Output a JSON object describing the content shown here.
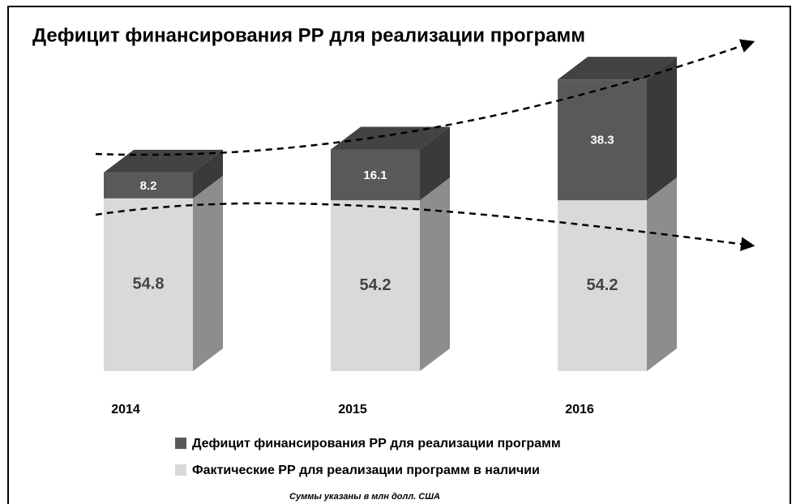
{
  "chart_data": {
    "type": "bar3d_stacked",
    "title": "Дефицит финансирования РР для реализации программ",
    "categories": [
      "2014",
      "2015",
      "2016"
    ],
    "series": [
      {
        "name": "Фактические РР для реализации программ в наличии",
        "color": "#d9d9d9",
        "values": [
          54.8,
          54.2,
          54.2
        ]
      },
      {
        "name": "Дефицит финансирования РР для реализации программ",
        "color": "#595959",
        "values": [
          8.2,
          16.1,
          38.3
        ]
      }
    ],
    "footnote": "Суммы указаны в млн долл. США"
  }
}
